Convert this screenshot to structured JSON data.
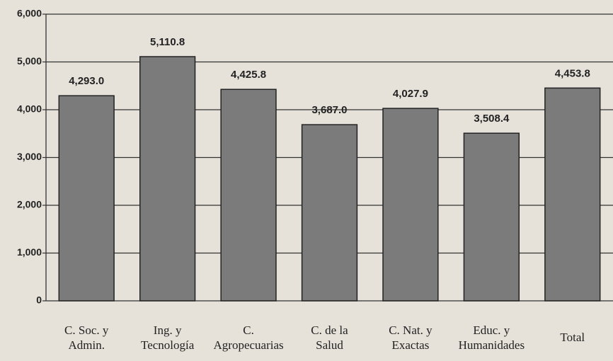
{
  "chart_data": {
    "type": "bar",
    "categories": [
      "C. Soc. y\nAdmin.",
      "Ing. y\nTecnología",
      "C.\nAgropecuarias",
      "C. de la\nSalud",
      "C. Nat. y\nExactas",
      "Educ. y\nHumanidades",
      "Total"
    ],
    "values": [
      4293.0,
      5110.8,
      4425.8,
      3687.0,
      4027.9,
      3508.4,
      4453.8
    ],
    "value_labels": [
      "4,293.0",
      "5,110.8",
      "4,425.8",
      "3,687.0",
      "4,027.9",
      "3,508.4",
      "4,453.8"
    ],
    "color": "#7b7b7b",
    "ylim": [
      0,
      6000
    ],
    "yticks": [
      0,
      {
        "value": 1000,
        "label": "1,000"
      },
      {
        "value": 2000,
        "label": "2,000"
      },
      {
        "value": 3000,
        "label": "3,000"
      },
      {
        "value": 4000,
        "label": "4,000"
      },
      {
        "value": 5000,
        "label": "5,000"
      },
      {
        "value": 6000,
        "label": "6,000"
      }
    ],
    "grid": true
  }
}
